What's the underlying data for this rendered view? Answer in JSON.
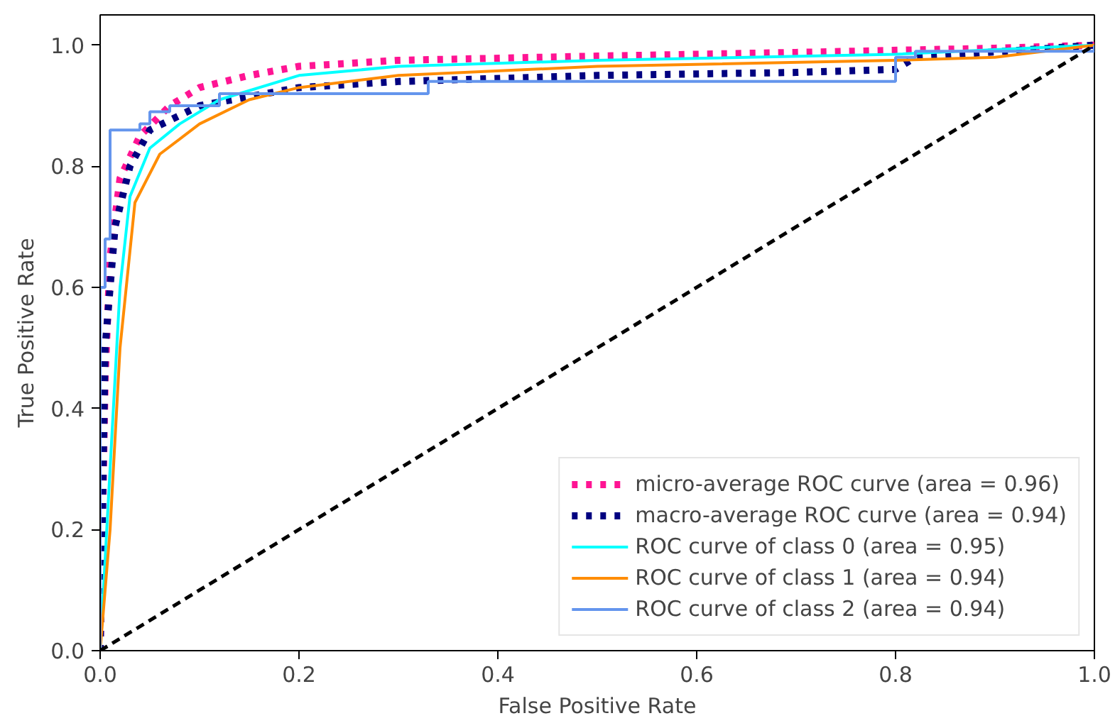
{
  "chart_data": {
    "type": "line",
    "xlabel": "False Positive Rate",
    "ylabel": "True Positive Rate",
    "xlim": [
      0,
      1
    ],
    "ylim": [
      0,
      1.05
    ],
    "xticks": [
      {
        "value": 0,
        "label": "0.0"
      },
      0.2,
      0.4,
      0.6,
      0.8,
      {
        "value": 1,
        "label": "1.0"
      }
    ],
    "yticks": [
      {
        "value": 0,
        "label": "0.0"
      },
      0.2,
      0.4,
      0.6,
      0.8,
      {
        "value": 1,
        "label": "1.0"
      }
    ],
    "grid": false,
    "legend": "bottom right",
    "series": [
      {
        "name": "micro-average ROC curve (area = 0.96)",
        "color": "#ff1493",
        "line_style": "dotted",
        "x": [
          0,
          0.005,
          0.01,
          0.02,
          0.04,
          0.07,
          0.1,
          0.15,
          0.2,
          0.3,
          0.5,
          0.7,
          0.9,
          1
        ],
        "values": [
          0,
          0.45,
          0.65,
          0.78,
          0.85,
          0.9,
          0.93,
          0.95,
          0.965,
          0.975,
          0.982,
          0.988,
          0.995,
          1
        ]
      },
      {
        "name": "macro-average ROC curve (area = 0.94)",
        "color": "#000080",
        "line_style": "dotted",
        "x": [
          0,
          0.005,
          0.015,
          0.03,
          0.05,
          0.1,
          0.2,
          0.3,
          0.5,
          0.7,
          0.8,
          0.82,
          1
        ],
        "values": [
          0,
          0.5,
          0.7,
          0.8,
          0.86,
          0.9,
          0.93,
          0.94,
          0.95,
          0.955,
          0.96,
          0.98,
          1
        ]
      },
      {
        "name": "ROC curve of class 0 (area = 0.95)",
        "color": "#00ffff",
        "line_style": "solid",
        "x": [
          0,
          0.01,
          0.02,
          0.03,
          0.05,
          0.08,
          0.12,
          0.2,
          0.3,
          0.5,
          0.8,
          1
        ],
        "values": [
          0,
          0.3,
          0.6,
          0.75,
          0.83,
          0.87,
          0.91,
          0.95,
          0.965,
          0.975,
          0.985,
          1
        ]
      },
      {
        "name": "ROC curve of class 1 (area = 0.94)",
        "color": "#ff8c00",
        "line_style": "solid",
        "x": [
          0,
          0.01,
          0.02,
          0.035,
          0.06,
          0.1,
          0.15,
          0.2,
          0.3,
          0.5,
          0.8,
          0.9,
          1
        ],
        "values": [
          0,
          0.2,
          0.5,
          0.74,
          0.82,
          0.87,
          0.91,
          0.93,
          0.95,
          0.965,
          0.975,
          0.98,
          1
        ]
      },
      {
        "name": "ROC curve of class 2 (area = 0.94)",
        "color": "#6495ed",
        "type": "step",
        "line_style": "solid",
        "x": [
          0,
          0,
          0.003,
          0.005,
          0.01,
          0.04,
          0.05,
          0.07,
          0.12,
          0.33,
          0.8,
          0.82,
          1
        ],
        "values": [
          0,
          0.6,
          0.6,
          0.68,
          0.86,
          0.87,
          0.89,
          0.9,
          0.92,
          0.94,
          0.98,
          0.99,
          1
        ]
      },
      {
        "color": "#000000",
        "line_style": "dashed",
        "x": [
          0,
          1
        ],
        "values": [
          0,
          1
        ]
      }
    ]
  }
}
